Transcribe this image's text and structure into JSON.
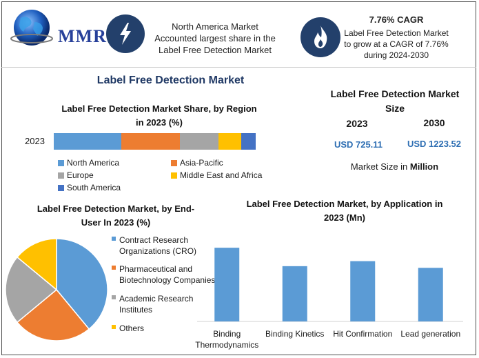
{
  "header": {
    "logo_text": "MMR",
    "region_text_lines": [
      "North America Market",
      "Accounted largest share in the",
      "Label Free Detection Market"
    ],
    "cagr_title": "7.76% CAGR",
    "cagr_lines": [
      "Label Free Detection Market",
      "to grow at a CAGR of 7.76%",
      "during 2024-2030"
    ],
    "icons": [
      "lightning-icon",
      "flame-icon",
      "globe-icon"
    ]
  },
  "main_title": "Label Free Detection Market",
  "market_size": {
    "title_lines": [
      "Label Free Detection Market",
      "Size"
    ],
    "years": [
      "2023",
      "2030"
    ],
    "values": [
      "USD 725.11",
      "USD 1223.52"
    ],
    "unit_prefix": "Market Size in ",
    "unit_bold": "Million",
    "value_color": "#2f6fb3"
  },
  "chart_data": [
    {
      "type": "bar",
      "stacked": true,
      "orientation": "horizontal",
      "title_lines": [
        "Label Free Detection Market Share, by Region",
        "in 2023 (%)"
      ],
      "categories": [
        "2023"
      ],
      "series": [
        {
          "name": "North America",
          "values": [
            33.5
          ],
          "color": "#5b9bd5"
        },
        {
          "name": "Asia-Pacific",
          "values": [
            29.0
          ],
          "color": "#ed7d31"
        },
        {
          "name": "Europe",
          "values": [
            19.0
          ],
          "color": "#a5a5a5"
        },
        {
          "name": "Middle East and Africa",
          "values": [
            11.3
          ],
          "color": "#ffc000"
        },
        {
          "name": "South America",
          "values": [
            7.2
          ],
          "color": "#4472c4"
        }
      ],
      "xlim": [
        0,
        100
      ],
      "legend": "bottom",
      "grid": false
    },
    {
      "type": "pie",
      "title_lines": [
        "Label Free Detection Market, by End-",
        "User In 2023 (%)"
      ],
      "categories": [
        "Contract Research Organizations (CRO)",
        "Pharmaceutical and Biotechnology Companies",
        "Academic Research Institutes",
        "Others"
      ],
      "legend_lines": [
        [
          "Contract Research",
          "Organizations (CRO)"
        ],
        [
          "Pharmaceutical and",
          "Biotechnology Companies"
        ],
        [
          "Academic Research",
          "Institutes"
        ],
        [
          "Others"
        ]
      ],
      "values": [
        39,
        25,
        22,
        14
      ],
      "colors": [
        "#5b9bd5",
        "#ed7d31",
        "#a5a5a5",
        "#ffc000"
      ],
      "legend": "right"
    },
    {
      "type": "bar",
      "title_lines": [
        "Label Free Detection Market, by Application in",
        "2023 (Mn)"
      ],
      "categories": [
        "Binding Thermodynamics",
        "Binding Kinetics",
        "Hit Confirmation",
        "Lead generation"
      ],
      "category_lines": [
        [
          "Binding",
          "Thermodynamics"
        ],
        [
          "Binding Kinetics"
        ],
        [
          "Hit Confirmation"
        ],
        [
          "Lead generation"
        ]
      ],
      "values": [
        220,
        165,
        180,
        160
      ],
      "color": "#5b9bd5",
      "ylim": [
        0,
        350
      ],
      "grid": false
    }
  ]
}
